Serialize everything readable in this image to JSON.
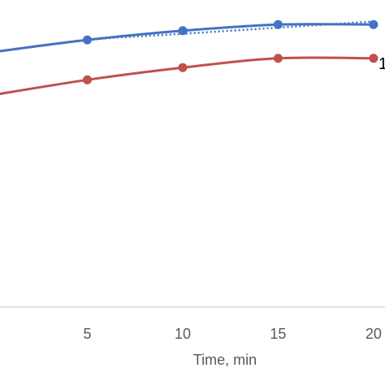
{
  "chart_data": {
    "type": "line",
    "xlabel": "Time, min",
    "ylabel": "",
    "xlim": [
      0,
      20.6
    ],
    "ylim": [
      0,
      1
    ],
    "x_ticks": [
      5,
      10,
      15,
      20
    ],
    "grid": false,
    "series": [
      {
        "color": "#4472C4",
        "style": "solid-markers",
        "x": [
          0,
          5,
          10,
          15,
          20
        ],
        "y": [
          0.83,
          0.87,
          0.9,
          0.92,
          0.92
        ]
      },
      {
        "color": "#4472C4",
        "style": "dotted-trend",
        "x": [
          0,
          5,
          10,
          15,
          20
        ],
        "y": [
          0.83,
          0.87,
          0.89,
          0.91,
          0.93
        ]
      },
      {
        "color": "#C0504D",
        "style": "solid-markers",
        "x": [
          0,
          5,
          10,
          15,
          20
        ],
        "y": [
          0.69,
          0.74,
          0.78,
          0.81,
          0.81
        ]
      }
    ],
    "annotations": [
      {
        "text": "1",
        "color": "#000000",
        "near_series": 0
      }
    ]
  }
}
